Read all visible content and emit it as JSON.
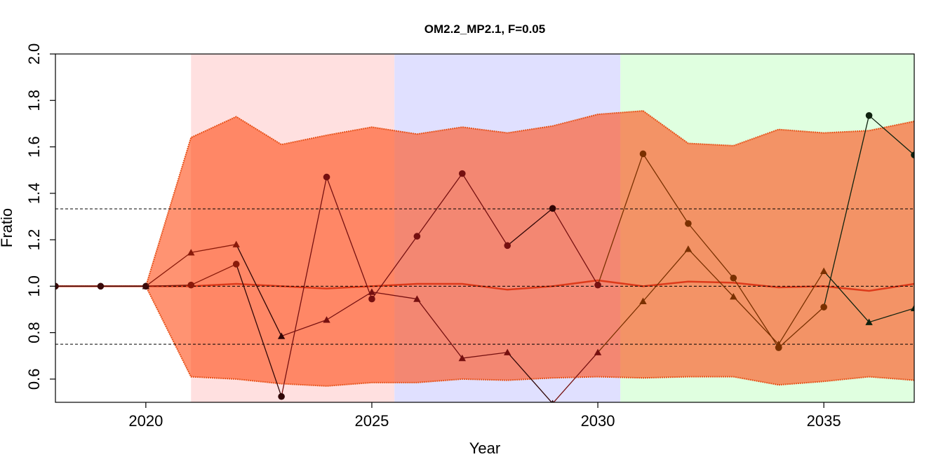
{
  "chart_data": {
    "type": "line",
    "title": "OM2.2_MP2.1, F=0.05",
    "xlabel": "Year",
    "ylabel": "Fratio",
    "xlim": [
      2018,
      2037
    ],
    "ylim": [
      0.5,
      2.0
    ],
    "xticks": [
      "2020",
      "2025",
      "2030",
      "2035"
    ],
    "yticks": [
      "0.6",
      "0.8",
      "1.0",
      "1.2",
      "1.4",
      "1.6",
      "1.8",
      "2.0"
    ],
    "reference_lines": [
      1.333,
      1.0,
      0.75
    ],
    "period_shading": [
      {
        "from": 2021,
        "to": 2025.5,
        "color": "#ffe0e0"
      },
      {
        "from": 2025.5,
        "to": 2030.5,
        "color": "#e0e0ff"
      },
      {
        "from": 2030.5,
        "to": 2037,
        "color": "#e0ffe0"
      }
    ],
    "band": {
      "x": [
        2018,
        2019,
        2020,
        2021,
        2022,
        2023,
        2024,
        2025,
        2026,
        2027,
        2028,
        2029,
        2030,
        2031,
        2032,
        2033,
        2034,
        2035,
        2036,
        2037
      ],
      "upper": [
        1.0,
        1.0,
        1.0,
        1.64,
        1.73,
        1.61,
        1.65,
        1.685,
        1.655,
        1.685,
        1.66,
        1.69,
        1.74,
        1.755,
        1.615,
        1.605,
        1.675,
        1.66,
        1.67,
        1.71
      ],
      "lower": [
        1.0,
        1.0,
        1.0,
        0.61,
        0.6,
        0.58,
        0.57,
        0.585,
        0.585,
        0.6,
        0.595,
        0.605,
        0.61,
        0.605,
        0.61,
        0.61,
        0.575,
        0.59,
        0.61,
        0.595
      ]
    },
    "median": [
      1.0,
      1.0,
      1.0,
      1.0,
      1.01,
      1.0,
      0.99,
      1.0,
      1.01,
      1.01,
      0.985,
      1.0,
      1.025,
      1.0,
      1.02,
      1.015,
      0.995,
      1.0,
      0.98,
      1.01
    ],
    "series": [
      {
        "marker": "circle",
        "values": [
          1.0,
          1.0,
          1.0,
          1.005,
          1.095,
          0.525,
          1.47,
          0.945,
          1.215,
          1.485,
          1.175,
          1.335,
          1.005,
          1.57,
          1.27,
          1.035,
          0.735,
          0.91,
          1.735,
          1.565
        ]
      },
      {
        "marker": "triangle",
        "values": [
          null,
          null,
          1.0,
          1.145,
          1.18,
          0.785,
          0.855,
          0.975,
          0.945,
          0.69,
          0.715,
          0.495,
          0.715,
          0.935,
          1.16,
          0.955,
          0.75,
          1.065,
          0.845,
          0.905
        ]
      }
    ]
  }
}
